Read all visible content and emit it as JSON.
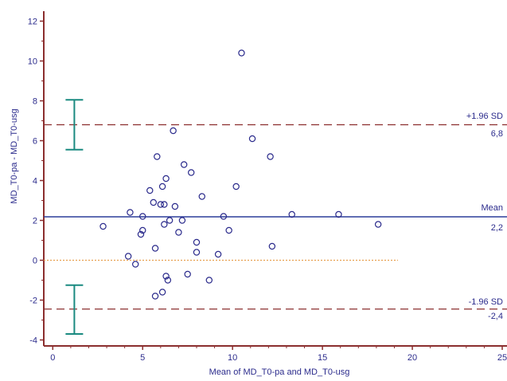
{
  "chart_data": {
    "type": "scatter",
    "subtype": "bland-altman",
    "xlabel": "Mean of MD_T0-pa and MD_T0-usg",
    "ylabel": "MD_T0-pa - MD_T0-usg",
    "xlim": [
      -0.5,
      25
    ],
    "ylim": [
      -4.3,
      12.5
    ],
    "x_ticks": [
      0,
      5,
      10,
      15,
      20,
      25
    ],
    "x_tick_labels": [
      "0",
      "5",
      "10",
      "15",
      "20",
      "25"
    ],
    "y_ticks": [
      -4,
      -2,
      0,
      2,
      4,
      6,
      8,
      10,
      12
    ],
    "y_tick_labels": [
      "-4",
      "-2",
      "0",
      "2",
      "4",
      "6",
      "8",
      "10",
      "12"
    ],
    "grid": false,
    "points": [
      {
        "x": 2.8,
        "y": 1.7
      },
      {
        "x": 4.3,
        "y": 2.4
      },
      {
        "x": 4.2,
        "y": 0.2
      },
      {
        "x": 4.6,
        "y": -0.2
      },
      {
        "x": 4.9,
        "y": 1.3
      },
      {
        "x": 5.0,
        "y": 1.5
      },
      {
        "x": 5.0,
        "y": 2.2
      },
      {
        "x": 5.4,
        "y": 3.5
      },
      {
        "x": 5.6,
        "y": 2.9
      },
      {
        "x": 5.7,
        "y": 0.6
      },
      {
        "x": 5.7,
        "y": -1.8
      },
      {
        "x": 5.8,
        "y": 5.2
      },
      {
        "x": 6.0,
        "y": 2.8
      },
      {
        "x": 6.1,
        "y": 3.7
      },
      {
        "x": 6.2,
        "y": 2.8
      },
      {
        "x": 6.2,
        "y": 1.8
      },
      {
        "x": 6.3,
        "y": 4.1
      },
      {
        "x": 6.3,
        "y": -0.8
      },
      {
        "x": 6.4,
        "y": -1.0
      },
      {
        "x": 6.5,
        "y": 2.0
      },
      {
        "x": 6.1,
        "y": -1.6
      },
      {
        "x": 6.7,
        "y": 6.5
      },
      {
        "x": 6.8,
        "y": 2.7
      },
      {
        "x": 7.0,
        "y": 1.4
      },
      {
        "x": 7.2,
        "y": 2.0
      },
      {
        "x": 7.3,
        "y": 4.8
      },
      {
        "x": 7.5,
        "y": -0.7
      },
      {
        "x": 7.7,
        "y": 4.4
      },
      {
        "x": 8.0,
        "y": 0.9
      },
      {
        "x": 8.0,
        "y": 0.4
      },
      {
        "x": 8.3,
        "y": 3.2
      },
      {
        "x": 8.7,
        "y": -1.0
      },
      {
        "x": 9.2,
        "y": 0.3
      },
      {
        "x": 9.5,
        "y": 2.2
      },
      {
        "x": 9.8,
        "y": 1.5
      },
      {
        "x": 10.2,
        "y": 3.7
      },
      {
        "x": 10.5,
        "y": 10.4
      },
      {
        "x": 11.1,
        "y": 6.1
      },
      {
        "x": 12.1,
        "y": 5.2
      },
      {
        "x": 12.2,
        "y": 0.7
      },
      {
        "x": 13.3,
        "y": 2.3
      },
      {
        "x": 15.9,
        "y": 2.3
      },
      {
        "x": 18.1,
        "y": 1.8
      }
    ],
    "mean_line": {
      "label": "Mean",
      "value_label": "2,2",
      "y": 2.18,
      "color": "#2b3d9a"
    },
    "upper_loa": {
      "label": "+1.96 SD",
      "value_label": "6,8",
      "y": 6.8,
      "color": "#8b2e2e"
    },
    "lower_loa": {
      "label": "-1.96 SD",
      "value_label": "-2,4",
      "y": -2.45,
      "color": "#8b2e2e"
    },
    "zero_line": {
      "y": 0,
      "x_end": 19.2,
      "color": "#e8a050"
    },
    "ci_bars": [
      {
        "x": 1.2,
        "low": 5.55,
        "high": 8.05
      },
      {
        "x": 1.2,
        "low": -3.7,
        "high": -1.25
      }
    ],
    "colors": {
      "axis": "#8b2e2e",
      "text": "#2b2b8c",
      "points": "#2b2b8c",
      "ci": "#1a8a80"
    }
  }
}
